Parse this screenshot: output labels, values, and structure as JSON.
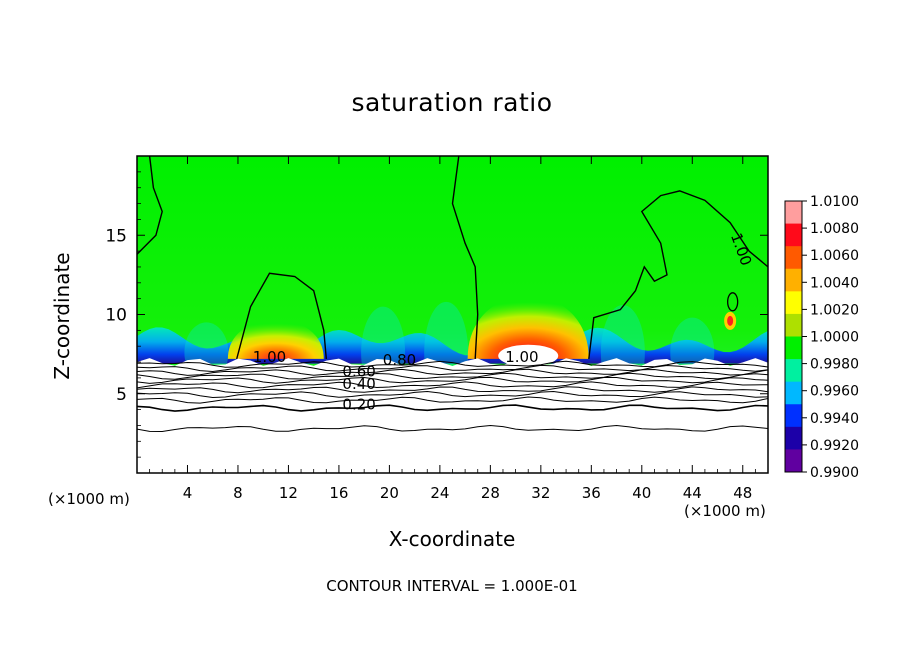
{
  "chart_data": {
    "type": "heatmap",
    "title": "saturation ratio",
    "xlabel": "X-coordinate",
    "ylabel": "Z-coordinate",
    "x_unit": "(×1000 m)",
    "x_unit_right": "(×1000 m)",
    "footer": "CONTOUR INTERVAL = 1.000E-01",
    "xlim": [
      0,
      50
    ],
    "ylim": [
      0,
      20
    ],
    "x_ticks": [
      4,
      8,
      12,
      16,
      20,
      24,
      28,
      32,
      36,
      40,
      44,
      48
    ],
    "y_ticks": [
      5,
      10,
      15
    ],
    "colorbar": {
      "labels": [
        "1.0100",
        "1.0080",
        "1.0060",
        "1.0040",
        "1.0020",
        "1.0000",
        "0.9980",
        "0.9960",
        "0.9940",
        "0.9920",
        "0.9900"
      ],
      "colors": [
        "#ff9e9e",
        "#ff0a1a",
        "#ff5a00",
        "#ffb000",
        "#ffff00",
        "#aee000",
        "#00f000",
        "#00f0a0",
        "#00b8ff",
        "#0030ff",
        "#1c00a8",
        "#6000a0"
      ]
    },
    "contour_labels": [
      {
        "text": "1.00",
        "x": 10.5,
        "z": 7.0
      },
      {
        "text": "0.80",
        "x": 20.8,
        "z": 6.8
      },
      {
        "text": "0.60",
        "x": 17.6,
        "z": 6.1
      },
      {
        "text": "0.40",
        "x": 17.6,
        "z": 5.3
      },
      {
        "text": "0.20",
        "x": 17.6,
        "z": 4.0
      },
      {
        "text": "1.00",
        "x": 30.5,
        "z": 7.0
      },
      {
        "text": "1.00",
        "x": 47.5,
        "z": 14.0
      }
    ],
    "supersaturated_plumes": [
      {
        "center_x": 11,
        "peak_value": 1.006
      },
      {
        "center_x": 31,
        "peak_value": 1.01
      },
      {
        "center_x": 47,
        "peak_value": 1.004
      }
    ]
  }
}
